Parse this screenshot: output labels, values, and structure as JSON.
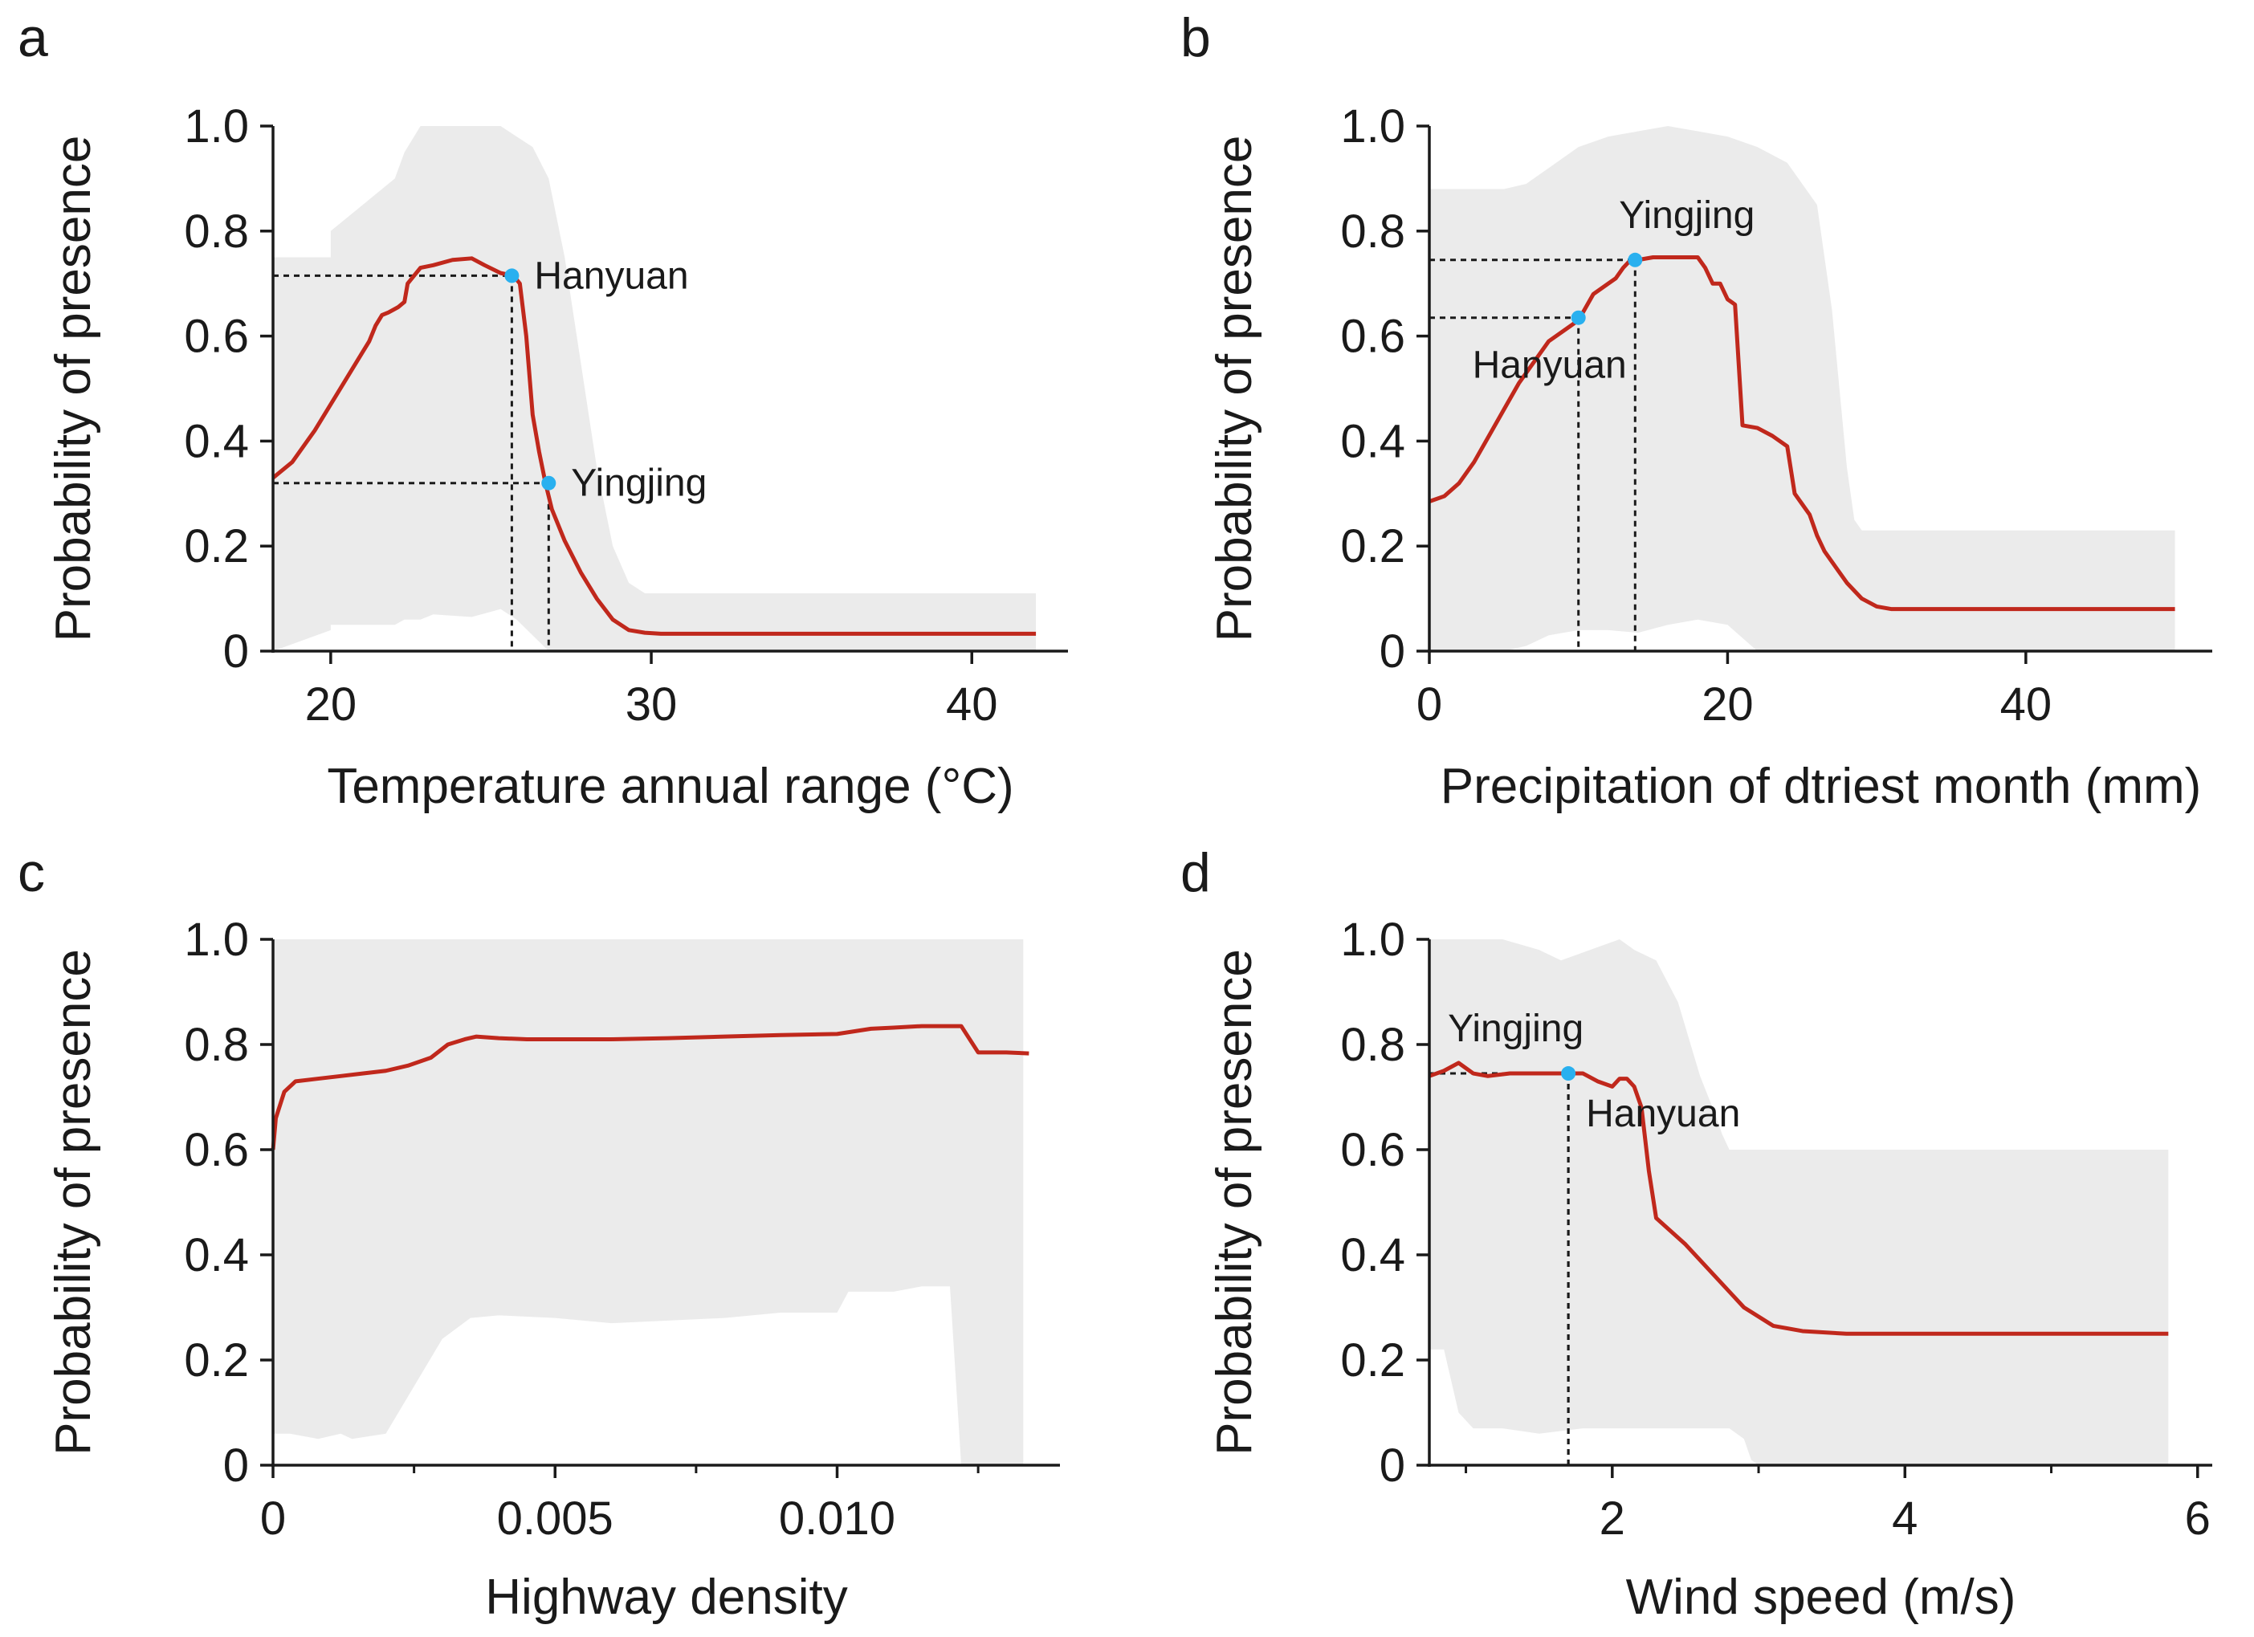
{
  "figure": {
    "background": "#ffffff"
  },
  "colors": {
    "curve": "#c0281c",
    "band": "#ebebeb",
    "point": "#29b0ef",
    "axis": "#1a1a1a",
    "guide": "#1a1a1a"
  },
  "chart_data": [
    {
      "panel": "a",
      "type": "line",
      "xlabel": "Temperature annual range (°C)",
      "ylabel": "Probability of  presence",
      "xlim": [
        18.2,
        43
      ],
      "ylim": [
        0,
        1
      ],
      "xticks": [
        20,
        30,
        40
      ],
      "xtick_labels": [
        "20",
        "30",
        "40"
      ],
      "yticks": [
        0,
        0.2,
        0.4,
        0.6,
        0.8,
        1.0
      ],
      "ytick_labels": [
        "0",
        "0.2",
        "0.4",
        "0.6",
        "0.8",
        "1.0"
      ],
      "series": [
        {
          "name": "Response curve",
          "x": [
            18.2,
            18.8,
            19.5,
            20.2,
            20.7,
            21.0,
            21.2,
            21.4,
            21.6,
            21.8,
            22.1,
            22.3,
            22.4,
            22.8,
            23.2,
            23.8,
            24.4,
            24.8,
            25.3,
            25.7,
            25.9,
            26.1,
            26.3,
            26.5,
            26.7,
            26.9,
            27.3,
            27.8,
            28.3,
            28.8,
            29.3,
            29.8,
            30.3,
            32,
            36,
            40,
            42
          ],
          "y": [
            0.33,
            0.36,
            0.42,
            0.49,
            0.54,
            0.57,
            0.59,
            0.62,
            0.64,
            0.645,
            0.655,
            0.665,
            0.7,
            0.73,
            0.735,
            0.745,
            0.748,
            0.735,
            0.72,
            0.715,
            0.7,
            0.6,
            0.45,
            0.38,
            0.32,
            0.27,
            0.21,
            0.15,
            0.1,
            0.06,
            0.04,
            0.035,
            0.033,
            0.033,
            0.033,
            0.033,
            0.033
          ]
        }
      ],
      "band": {
        "x": [
          18.2,
          18.2,
          20.0,
          20.0,
          22.0,
          22.3,
          22.8,
          23.2,
          24.4,
          25.3,
          25.8,
          26.3,
          26.8,
          27.3,
          27.8,
          28.3,
          28.8,
          29.3,
          29.8,
          30.5,
          42
        ],
        "upper": [
          0.73,
          0.75,
          0.75,
          0.8,
          0.9,
          0.95,
          1.0,
          1.0,
          1.0,
          1.0,
          0.98,
          0.96,
          0.9,
          0.75,
          0.55,
          0.35,
          0.2,
          0.13,
          0.11,
          0.11,
          0.11
        ],
        "lower": [
          0.0,
          0.0,
          0.04,
          0.05,
          0.05,
          0.06,
          0.06,
          0.07,
          0.065,
          0.08,
          0.06,
          0.03,
          0.0,
          0.0,
          0.0,
          0.0,
          0.0,
          0.0,
          0.0,
          0.0,
          0.0
        ]
      },
      "markers": [
        {
          "label": "Hanyuan",
          "x": 25.65,
          "y": 0.715,
          "position": "right"
        },
        {
          "label": "Yingjing",
          "x": 26.8,
          "y": 0.32,
          "position": "right"
        }
      ]
    },
    {
      "panel": "b",
      "type": "line",
      "xlabel": "Precipitation of dtriest month (mm)",
      "ylabel": "Probability of  presence",
      "xlim": [
        0,
        52.5
      ],
      "ylim": [
        0,
        1
      ],
      "xticks": [
        0,
        20,
        40
      ],
      "xtick_labels": [
        "0",
        "20",
        "40"
      ],
      "yticks": [
        0,
        0.2,
        0.4,
        0.6,
        0.8,
        1.0
      ],
      "ytick_labels": [
        "0",
        "0.2",
        "0.4",
        "0.6",
        "0.8",
        "1.0"
      ],
      "series": [
        {
          "name": "Response curve",
          "x": [
            0,
            1,
            2,
            3,
            4,
            5,
            6,
            7,
            8,
            9,
            10,
            11,
            12,
            12.5,
            13,
            13.5,
            14,
            15,
            16,
            17,
            18,
            18.5,
            19,
            19.5,
            20,
            20.5,
            21,
            22,
            23,
            24,
            24.5,
            25,
            25.5,
            26,
            26.5,
            27,
            28,
            29,
            30,
            31,
            32,
            35,
            40,
            45,
            50
          ],
          "y": [
            0.285,
            0.295,
            0.32,
            0.36,
            0.41,
            0.46,
            0.51,
            0.55,
            0.59,
            0.61,
            0.63,
            0.68,
            0.7,
            0.71,
            0.73,
            0.745,
            0.745,
            0.75,
            0.75,
            0.75,
            0.75,
            0.73,
            0.7,
            0.7,
            0.67,
            0.66,
            0.43,
            0.425,
            0.41,
            0.39,
            0.3,
            0.28,
            0.26,
            0.22,
            0.19,
            0.17,
            0.13,
            0.1,
            0.085,
            0.08,
            0.08,
            0.08,
            0.08,
            0.08,
            0.08
          ]
        }
      ],
      "band": {
        "x": [
          0,
          5,
          6.5,
          8,
          10,
          12,
          14,
          16,
          18,
          20,
          22,
          24,
          26,
          27,
          27.5,
          28,
          28.5,
          29,
          50
        ],
        "upper": [
          0.88,
          0.88,
          0.89,
          0.92,
          0.96,
          0.98,
          0.99,
          1.0,
          0.99,
          0.98,
          0.96,
          0.93,
          0.85,
          0.65,
          0.5,
          0.35,
          0.25,
          0.23,
          0.23
        ],
        "lower": [
          0.0,
          0.0,
          0.01,
          0.03,
          0.04,
          0.04,
          0.035,
          0.05,
          0.06,
          0.05,
          0.0,
          0.0,
          0.0,
          0.0,
          0.0,
          0.0,
          0.0,
          0.0,
          0.0
        ]
      },
      "markers": [
        {
          "label": "Yingjing",
          "x": 13.8,
          "y": 0.745,
          "position": "top"
        },
        {
          "label": "Hanyuan",
          "x": 10.0,
          "y": 0.635,
          "position": "bottom-left"
        }
      ]
    },
    {
      "panel": "c",
      "type": "line",
      "xlabel": "Highway density",
      "ylabel": "Probability of  presence",
      "xlim": [
        0,
        0.01395
      ],
      "ylim": [
        0,
        1
      ],
      "xticks": [
        0,
        0.005,
        0.01
      ],
      "xtick_labels": [
        "0",
        "0.005",
        "0.010"
      ],
      "minor_xticks": [
        0.0025,
        0.0075,
        0.0125
      ],
      "yticks": [
        0,
        0.2,
        0.4,
        0.6,
        0.8,
        1.0
      ],
      "ytick_labels": [
        "0",
        "0.2",
        "0.4",
        "0.6",
        "0.8",
        "1.0"
      ],
      "series": [
        {
          "name": "Response curve",
          "x": [
            0,
            5e-05,
            0.0002,
            0.0004,
            0.0008,
            0.0012,
            0.0016,
            0.002,
            0.0024,
            0.0028,
            0.0031,
            0.0034,
            0.0036,
            0.004,
            0.0045,
            0.005,
            0.006,
            0.007,
            0.008,
            0.009,
            0.01,
            0.0103,
            0.0106,
            0.011,
            0.0115,
            0.012,
            0.0122,
            0.0125,
            0.013,
            0.0134
          ],
          "y": [
            0.6,
            0.66,
            0.71,
            0.73,
            0.735,
            0.74,
            0.745,
            0.75,
            0.76,
            0.775,
            0.8,
            0.81,
            0.815,
            0.812,
            0.81,
            0.81,
            0.81,
            0.812,
            0.815,
            0.818,
            0.82,
            0.825,
            0.83,
            0.832,
            0.835,
            0.835,
            0.835,
            0.785,
            0.785,
            0.783
          ]
        }
      ],
      "band": {
        "x": [
          0,
          0.0003,
          0.0008,
          0.0012,
          0.0014,
          0.002,
          0.0025,
          0.003,
          0.0035,
          0.004,
          0.005,
          0.006,
          0.007,
          0.008,
          0.009,
          0.01,
          0.0102,
          0.011,
          0.0115,
          0.012,
          0.0122,
          0.0125,
          0.013,
          0.0133
        ],
        "upper": [
          1.0,
          1.0,
          1.0,
          1.0,
          1.0,
          1.0,
          1.0,
          1.0,
          1.0,
          1.0,
          1.0,
          1.0,
          1.0,
          1.0,
          1.0,
          1.0,
          1.0,
          1.0,
          1.0,
          1.0,
          1.0,
          1.0,
          1.0,
          1.0
        ],
        "lower": [
          0.06,
          0.06,
          0.05,
          0.06,
          0.05,
          0.06,
          0.15,
          0.24,
          0.28,
          0.285,
          0.28,
          0.27,
          0.275,
          0.28,
          0.29,
          0.29,
          0.33,
          0.33,
          0.34,
          0.34,
          0.0,
          0.0,
          0.0,
          0.0
        ]
      },
      "markers": []
    },
    {
      "panel": "d",
      "type": "line",
      "xlabel": "Wind speed (m/s)",
      "ylabel": "Probability of  presence",
      "xlim": [
        0.75,
        6.1
      ],
      "ylim": [
        0,
        1
      ],
      "xticks": [
        2,
        4,
        6
      ],
      "xtick_labels": [
        "2",
        "4",
        "6"
      ],
      "minor_xticks": [
        1,
        3,
        5
      ],
      "yticks": [
        0,
        0.2,
        0.4,
        0.6,
        0.8,
        1.0
      ],
      "ytick_labels": [
        "0",
        "0.2",
        "0.4",
        "0.6",
        "0.8",
        "1.0"
      ],
      "series": [
        {
          "name": "Response curve",
          "x": [
            0.75,
            0.85,
            0.95,
            1.05,
            1.15,
            1.3,
            1.5,
            1.7,
            1.8,
            1.9,
            2.0,
            2.05,
            2.1,
            2.15,
            2.2,
            2.25,
            2.3,
            2.5,
            2.7,
            2.9,
            3.1,
            3.3,
            3.6,
            4.0,
            5.0,
            5.8
          ],
          "y": [
            0.74,
            0.75,
            0.765,
            0.745,
            0.74,
            0.745,
            0.745,
            0.745,
            0.745,
            0.73,
            0.72,
            0.735,
            0.735,
            0.72,
            0.68,
            0.56,
            0.47,
            0.42,
            0.36,
            0.3,
            0.265,
            0.255,
            0.25,
            0.25,
            0.25,
            0.25
          ]
        }
      ],
      "band": {
        "x": [
          0.75,
          0.85,
          0.95,
          1.05,
          1.25,
          1.5,
          1.65,
          1.8,
          1.95,
          2.05,
          2.15,
          2.3,
          2.45,
          2.6,
          2.7,
          2.75,
          2.8,
          2.9,
          2.95,
          3.0,
          5.8
        ],
        "upper": [
          1.0,
          1.0,
          1.0,
          1.0,
          1.0,
          0.98,
          0.96,
          0.975,
          0.99,
          1.0,
          0.98,
          0.96,
          0.88,
          0.74,
          0.67,
          0.63,
          0.6,
          0.6,
          0.6,
          0.6,
          0.6
        ],
        "lower": [
          0.22,
          0.22,
          0.1,
          0.07,
          0.07,
          0.06,
          0.065,
          0.07,
          0.07,
          0.07,
          0.07,
          0.07,
          0.07,
          0.07,
          0.07,
          0.07,
          0.07,
          0.05,
          0.01,
          0.0,
          0.0
        ]
      },
      "markers": [
        {
          "label": "Yingjing",
          "x": 1.7,
          "y": 0.745,
          "position": "top-left"
        },
        {
          "label": "Hanyuan",
          "x": 1.7,
          "y": 0.745,
          "position": "bottom-right"
        }
      ]
    }
  ]
}
